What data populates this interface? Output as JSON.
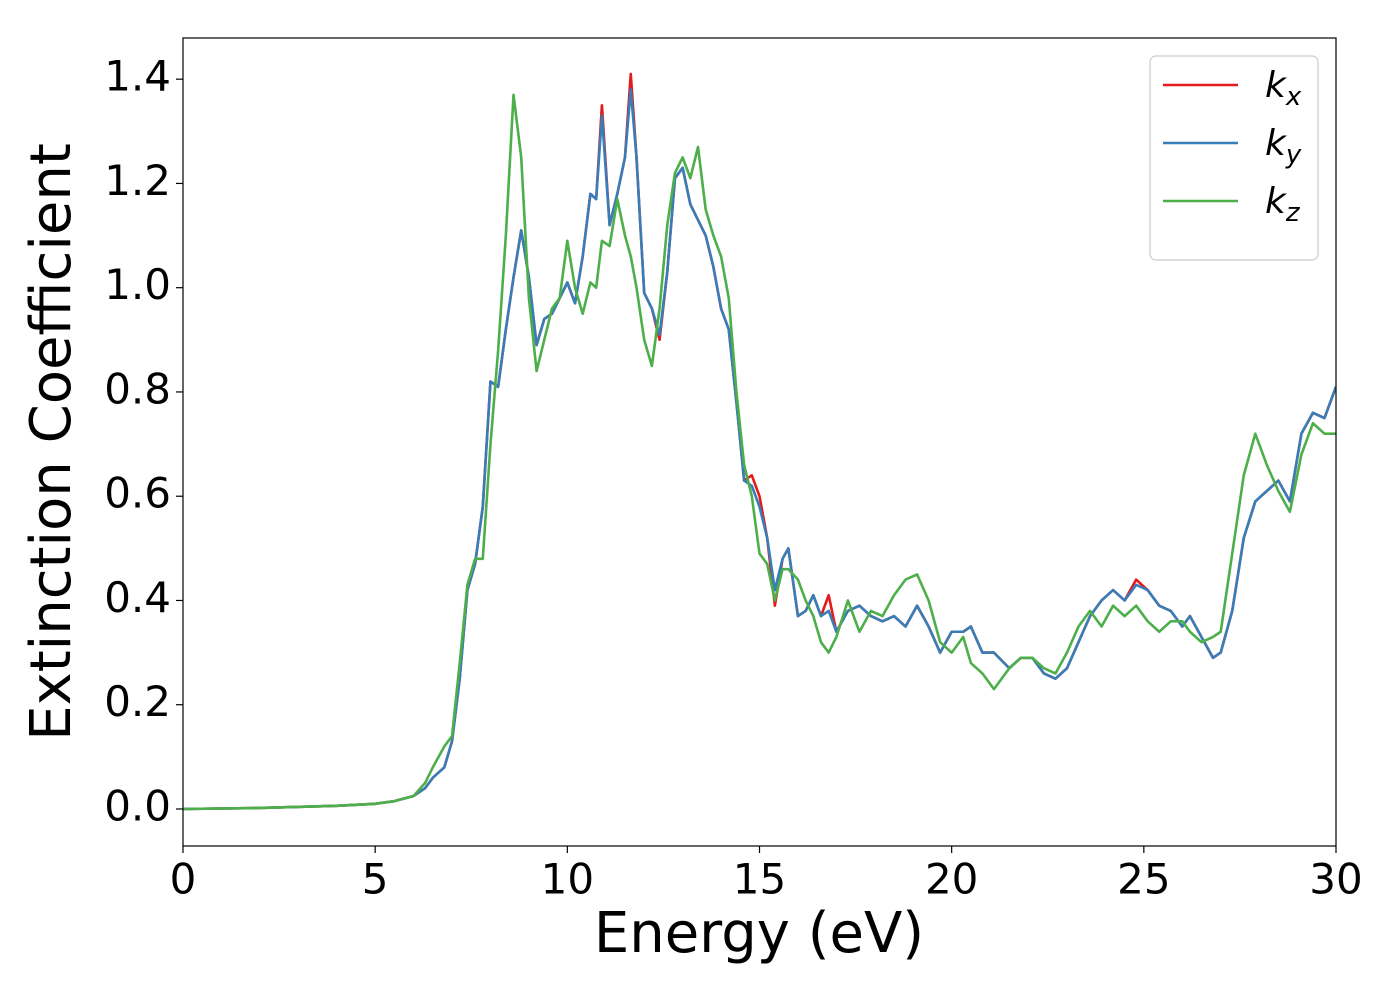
{
  "chart_data": {
    "type": "line",
    "xlabel": "Energy (eV)",
    "ylabel": "Extinction Coefficient",
    "x": [
      0,
      2,
      4,
      5,
      5.5,
      6,
      6.3,
      6.5,
      6.8,
      7,
      7.2,
      7.4,
      7.6,
      7.8,
      8,
      8.2,
      8.4,
      8.6,
      8.8,
      9,
      9.2,
      9.4,
      9.6,
      9.8,
      10,
      10.2,
      10.4,
      10.6,
      10.75,
      10.9,
      11.1,
      11.3,
      11.5,
      11.65,
      11.8,
      12,
      12.2,
      12.4,
      12.6,
      12.8,
      13,
      13.2,
      13.4,
      13.6,
      13.8,
      14,
      14.2,
      14.4,
      14.6,
      14.8,
      15,
      15.2,
      15.4,
      15.6,
      15.75,
      16,
      16.2,
      16.4,
      16.6,
      16.8,
      17,
      17.3,
      17.6,
      17.9,
      18.2,
      18.5,
      18.8,
      19.1,
      19.4,
      19.7,
      20,
      20.3,
      20.5,
      20.8,
      21.1,
      21.5,
      21.8,
      22.1,
      22.4,
      22.7,
      23,
      23.3,
      23.6,
      23.9,
      24.2,
      24.5,
      24.8,
      25.1,
      25.4,
      25.7,
      26,
      26.2,
      26.5,
      26.8,
      27,
      27.3,
      27.6,
      27.9,
      28.2,
      28.5,
      28.8,
      29.1,
      29.4,
      29.7,
      30
    ],
    "series": [
      {
        "name": "kx",
        "color": "#e41a1c",
        "values": [
          0,
          0.002,
          0.006,
          0.01,
          0.015,
          0.025,
          0.04,
          0.06,
          0.08,
          0.13,
          0.25,
          0.42,
          0.47,
          0.58,
          0.82,
          0.81,
          0.92,
          1.02,
          1.11,
          1.02,
          0.89,
          0.94,
          0.95,
          0.98,
          1.01,
          0.97,
          1.06,
          1.18,
          1.17,
          1.35,
          1.12,
          1.18,
          1.25,
          1.41,
          1.25,
          0.99,
          0.96,
          0.9,
          1.03,
          1.21,
          1.23,
          1.16,
          1.13,
          1.1,
          1.04,
          0.96,
          0.92,
          0.78,
          0.63,
          0.64,
          0.6,
          0.52,
          0.39,
          0.48,
          0.5,
          0.37,
          0.38,
          0.41,
          0.37,
          0.41,
          0.34,
          0.38,
          0.39,
          0.37,
          0.36,
          0.37,
          0.35,
          0.39,
          0.35,
          0.3,
          0.34,
          0.34,
          0.35,
          0.3,
          0.3,
          0.27,
          0.29,
          0.29,
          0.26,
          0.25,
          0.27,
          0.32,
          0.37,
          0.4,
          0.42,
          0.4,
          0.44,
          0.42,
          0.39,
          0.38,
          0.35,
          0.37,
          0.33,
          0.29,
          0.3,
          0.38,
          0.52,
          0.59,
          0.61,
          0.63,
          0.59,
          0.72,
          0.76,
          0.75,
          0.81
        ]
      },
      {
        "name": "ky",
        "color": "#377eb8",
        "values": [
          0,
          0.002,
          0.006,
          0.01,
          0.015,
          0.025,
          0.04,
          0.06,
          0.08,
          0.13,
          0.25,
          0.42,
          0.47,
          0.58,
          0.82,
          0.81,
          0.92,
          1.02,
          1.11,
          1.02,
          0.89,
          0.94,
          0.95,
          0.98,
          1.01,
          0.97,
          1.06,
          1.18,
          1.17,
          1.33,
          1.12,
          1.18,
          1.25,
          1.38,
          1.25,
          0.99,
          0.96,
          0.91,
          1.03,
          1.21,
          1.23,
          1.16,
          1.13,
          1.1,
          1.04,
          0.96,
          0.92,
          0.78,
          0.63,
          0.62,
          0.58,
          0.52,
          0.42,
          0.48,
          0.5,
          0.37,
          0.38,
          0.41,
          0.37,
          0.38,
          0.34,
          0.38,
          0.39,
          0.37,
          0.36,
          0.37,
          0.35,
          0.39,
          0.35,
          0.3,
          0.34,
          0.34,
          0.35,
          0.3,
          0.3,
          0.27,
          0.29,
          0.29,
          0.26,
          0.25,
          0.27,
          0.32,
          0.37,
          0.4,
          0.42,
          0.4,
          0.43,
          0.42,
          0.39,
          0.38,
          0.35,
          0.37,
          0.33,
          0.29,
          0.3,
          0.38,
          0.52,
          0.59,
          0.61,
          0.63,
          0.59,
          0.72,
          0.76,
          0.75,
          0.81
        ]
      },
      {
        "name": "kz",
        "color": "#4daf4a",
        "values": [
          0,
          0.002,
          0.006,
          0.01,
          0.015,
          0.025,
          0.05,
          0.08,
          0.12,
          0.14,
          0.28,
          0.43,
          0.48,
          0.48,
          0.7,
          0.88,
          1.1,
          1.37,
          1.25,
          0.98,
          0.84,
          0.9,
          0.96,
          0.98,
          1.09,
          1.0,
          0.95,
          1.01,
          1.0,
          1.09,
          1.08,
          1.17,
          1.1,
          1.06,
          1.0,
          0.9,
          0.85,
          0.96,
          1.12,
          1.22,
          1.25,
          1.21,
          1.27,
          1.15,
          1.1,
          1.06,
          0.98,
          0.8,
          0.66,
          0.6,
          0.49,
          0.47,
          0.4,
          0.46,
          0.46,
          0.44,
          0.4,
          0.37,
          0.32,
          0.3,
          0.33,
          0.4,
          0.34,
          0.38,
          0.37,
          0.41,
          0.44,
          0.45,
          0.4,
          0.32,
          0.3,
          0.33,
          0.28,
          0.26,
          0.23,
          0.27,
          0.29,
          0.29,
          0.27,
          0.26,
          0.3,
          0.35,
          0.38,
          0.35,
          0.39,
          0.37,
          0.39,
          0.36,
          0.34,
          0.36,
          0.36,
          0.34,
          0.32,
          0.33,
          0.34,
          0.49,
          0.64,
          0.72,
          0.66,
          0.61,
          0.57,
          0.68,
          0.74,
          0.72,
          0.72
        ]
      }
    ],
    "xlim": [
      0,
      30
    ],
    "xticks": [
      0,
      5,
      10,
      15,
      20,
      25,
      30
    ],
    "ylim": [
      -0.071,
      1.479
    ],
    "yticks": [
      {
        "value": 0,
        "label": "0.0"
      },
      {
        "value": 0.2,
        "label": "0.2"
      },
      {
        "value": 0.4,
        "label": "0.4"
      },
      {
        "value": 0.6,
        "label": "0.6"
      },
      {
        "value": 0.8,
        "label": "0.8"
      },
      {
        "value": 1.0,
        "label": "1.0"
      },
      {
        "value": 1.2,
        "label": "1.2"
      },
      {
        "value": 1.4,
        "label": "1.4"
      }
    ],
    "grid": false,
    "legend": "upper right"
  }
}
